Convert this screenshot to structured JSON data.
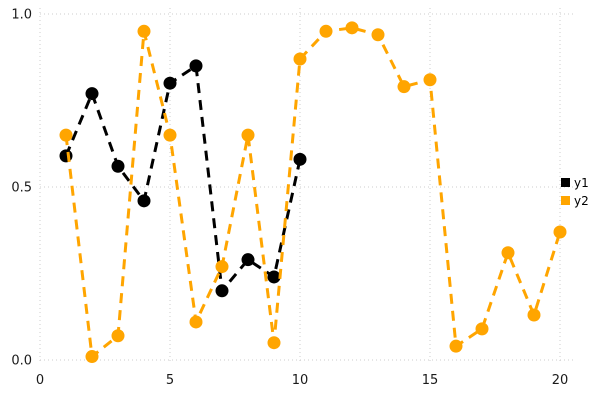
{
  "chart_data": {
    "type": "line",
    "title": "",
    "xlabel": "",
    "ylabel": "",
    "xlim": [
      0,
      20
    ],
    "ylim": [
      0,
      1
    ],
    "x_ticks": [
      0,
      5,
      10,
      15,
      20
    ],
    "x_tick_labels": [
      "0",
      "5",
      "10",
      "15",
      "20"
    ],
    "y_ticks": [
      0.0,
      0.5,
      1.0
    ],
    "y_tick_labels": [
      "0.0",
      "0.5",
      "1.0"
    ],
    "grid": "dotted",
    "grid_color": "#cccccc",
    "legend_position": "right",
    "line_style": "dashed",
    "marker": "circle",
    "series": [
      {
        "name": "y1",
        "color": "#000000",
        "x": [
          1,
          2,
          3,
          4,
          5,
          6,
          7,
          8,
          9,
          10
        ],
        "y": [
          0.59,
          0.77,
          0.56,
          0.46,
          0.8,
          0.85,
          0.2,
          0.29,
          0.24,
          0.58
        ]
      },
      {
        "name": "y2",
        "color": "#FFA500",
        "x": [
          1,
          2,
          3,
          4,
          5,
          6,
          7,
          8,
          9,
          10,
          11,
          12,
          13,
          14,
          15,
          16,
          17,
          18,
          19,
          20
        ],
        "y": [
          0.65,
          0.01,
          0.07,
          0.95,
          0.65,
          0.11,
          0.27,
          0.65,
          0.05,
          0.87,
          0.95,
          0.96,
          0.94,
          0.79,
          0.81,
          0.04,
          0.09,
          0.31,
          0.13,
          0.37
        ]
      }
    ]
  }
}
